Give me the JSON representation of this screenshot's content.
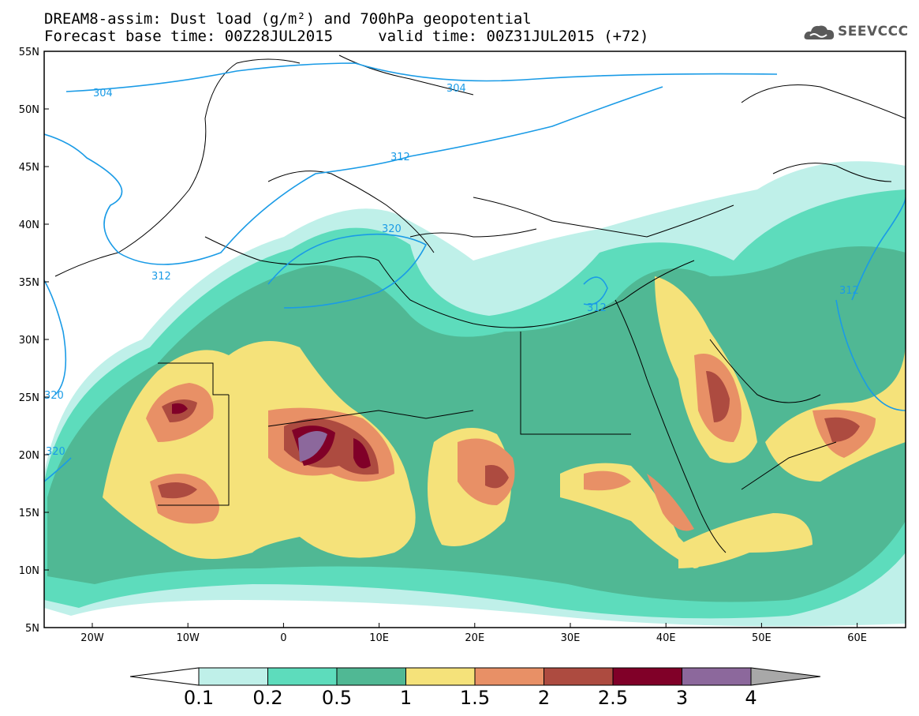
{
  "title_line1": "DREAM8-assim: Dust load (g/m²) and 700hPa geopotential",
  "title_line2": "Forecast base time: 00Z28JUL2015     valid time: 00Z31JUL2015 (+72)",
  "logo_text": "SEEVCCC",
  "lat_labels": [
    "55N",
    "50N",
    "45N",
    "40N",
    "35N",
    "30N",
    "25N",
    "20N",
    "15N",
    "10N",
    "5N"
  ],
  "lon_labels": [
    "20W",
    "10W",
    "0",
    "10E",
    "20E",
    "30E",
    "40E",
    "50E",
    "60E"
  ],
  "contour_labels": [
    "304",
    "304",
    "312",
    "312",
    "320",
    "312",
    "312",
    "320",
    "320"
  ],
  "colorbar": {
    "labels": [
      "0.1",
      "0.2",
      "0.5",
      "1",
      "1.5",
      "2",
      "2.5",
      "3",
      "4"
    ],
    "colors": [
      "#bff0e9",
      "#5ddcbc",
      "#50b894",
      "#f5e27a",
      "#e89066",
      "#ad4b40",
      "#800028",
      "#8c689c"
    ],
    "over_color": "#a8a8a8",
    "under_color": "#ffffff"
  },
  "colors": {
    "contour": "#1a9be6",
    "coast": "#000000"
  }
}
